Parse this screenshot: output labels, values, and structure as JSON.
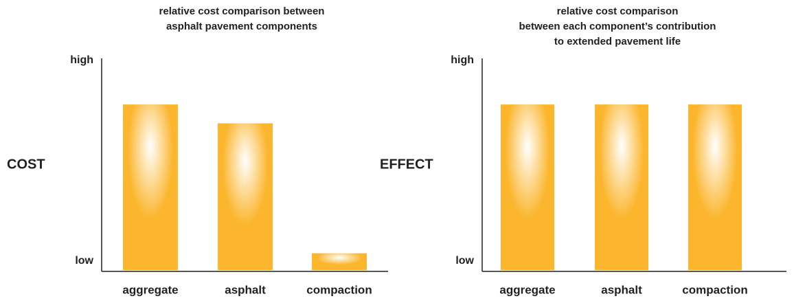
{
  "chart_data": [
    {
      "type": "bar",
      "title": [
        "relative cost comparison between",
        "asphalt pavement components"
      ],
      "y_label": "COST",
      "categories": [
        "aggregate",
        "asphalt",
        "compaction"
      ],
      "values": [
        79,
        70,
        8
      ],
      "color": "#fbb62e",
      "ylim": [
        0,
        100
      ],
      "yticks": [
        {
          "value": 0,
          "label": "low"
        },
        {
          "value": 100,
          "label": "high"
        }
      ]
    },
    {
      "type": "bar",
      "title": [
        "relative cost comparison",
        "between each component’s contribution",
        "to extended pavement life"
      ],
      "y_label": "EFFECT",
      "categories": [
        "aggregate",
        "asphalt",
        "compaction"
      ],
      "values": [
        79,
        79,
        79
      ],
      "color": "#fbb62e",
      "ylim": [
        0,
        100
      ],
      "yticks": [
        {
          "value": 0,
          "label": "low"
        },
        {
          "value": 100,
          "label": "high"
        }
      ]
    }
  ]
}
